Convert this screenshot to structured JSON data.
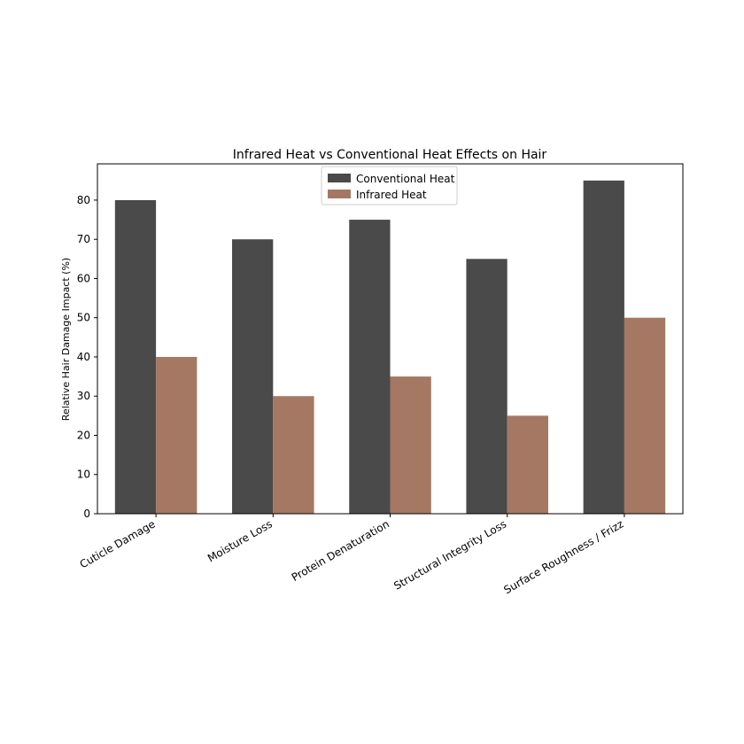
{
  "chart_data": {
    "type": "bar",
    "title": "Infrared Heat vs Conventional Heat Effects on Hair",
    "xlabel": "",
    "ylabel": "Relative Hair Damage Impact (%)",
    "categories": [
      "Cuticle Damage",
      "Moisture Loss",
      "Protein Denaturation",
      "Structural Integrity Loss",
      "Surface Roughness / Frizz"
    ],
    "series": [
      {
        "name": "Conventional Heat",
        "color": "#4a4a4a",
        "values": [
          80,
          70,
          75,
          65,
          85
        ]
      },
      {
        "name": "Infrared Heat",
        "color": "#a47862",
        "values": [
          40,
          30,
          35,
          25,
          50
        ]
      }
    ],
    "ylim": [
      0,
      89.25
    ],
    "yticks": [
      0,
      10,
      20,
      30,
      40,
      50,
      60,
      70,
      80
    ],
    "grid": false,
    "legend_position": "top-center"
  }
}
